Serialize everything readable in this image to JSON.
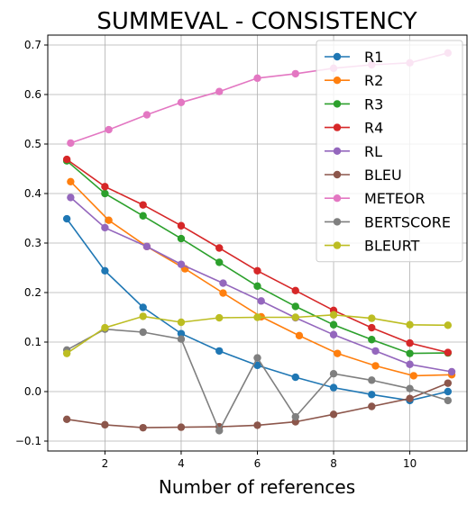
{
  "chart_data": {
    "type": "line",
    "title": "SUMMEVAL - CONSISTENCY",
    "xlabel": "Number of references",
    "ylabel": "",
    "xlim": [
      0.5,
      11.5
    ],
    "ylim": [
      -0.12,
      0.72
    ],
    "x": [
      1,
      2,
      3,
      4,
      5,
      6,
      7,
      8,
      9,
      10,
      11
    ],
    "x_offsets_note": "",
    "xticks": [
      2,
      4,
      6,
      8,
      10
    ],
    "yticks": [
      -0.1,
      0.0,
      0.1,
      0.2,
      0.3,
      0.4,
      0.5,
      0.6,
      0.7
    ],
    "ytick_labels": [
      "−0.1",
      "0.0",
      "0.1",
      "0.2",
      "0.3",
      "0.4",
      "0.5",
      "0.6",
      "0.7"
    ],
    "grid": true,
    "legend_position": "top-right",
    "series": [
      {
        "name": "R1",
        "color": "#1f77b4",
        "x": [
          1,
          2,
          3,
          4,
          5,
          6,
          7,
          8,
          9,
          10,
          11
        ],
        "values": [
          0.349,
          0.244,
          0.17,
          0.117,
          0.082,
          0.053,
          0.029,
          0.008,
          -0.006,
          -0.018,
          0.0
        ]
      },
      {
        "name": "R2",
        "color": "#ff7f0e",
        "x": [
          1.1,
          2.1,
          3.1,
          4.1,
          5.1,
          6.1,
          7.1,
          8.1,
          9.1,
          10.1,
          11.1
        ],
        "values": [
          0.424,
          0.346,
          0.293,
          0.248,
          0.199,
          0.151,
          0.113,
          0.077,
          0.052,
          0.032,
          0.034
        ]
      },
      {
        "name": "R3",
        "color": "#2ca02c",
        "x": [
          1,
          2,
          3,
          4,
          5,
          6,
          7,
          8,
          9,
          10,
          11
        ],
        "values": [
          0.466,
          0.4,
          0.355,
          0.309,
          0.261,
          0.213,
          0.172,
          0.135,
          0.105,
          0.077,
          0.078
        ]
      },
      {
        "name": "R4",
        "color": "#d62728",
        "x": [
          1,
          2,
          3,
          4,
          5,
          6,
          7,
          8,
          9,
          10,
          11
        ],
        "values": [
          0.469,
          0.414,
          0.377,
          0.335,
          0.29,
          0.244,
          0.204,
          0.164,
          0.129,
          0.098,
          0.079
        ]
      },
      {
        "name": "RL",
        "color": "#9467bd",
        "x": [
          1.1,
          2,
          3.1,
          4,
          5.1,
          6.1,
          7,
          8,
          9.1,
          10,
          11.1
        ],
        "values": [
          0.392,
          0.331,
          0.293,
          0.257,
          0.219,
          0.183,
          0.149,
          0.115,
          0.082,
          0.055,
          0.04
        ]
      },
      {
        "name": "BLEU",
        "color": "#8c564b",
        "x": [
          1,
          2,
          3,
          4,
          5,
          6,
          7,
          8,
          9,
          10,
          11
        ],
        "values": [
          -0.056,
          -0.067,
          -0.073,
          -0.072,
          -0.071,
          -0.068,
          -0.061,
          -0.046,
          -0.03,
          -0.014,
          0.017
        ]
      },
      {
        "name": "METEOR",
        "color": "#e377c2",
        "x": [
          1.1,
          2.1,
          3.1,
          4,
          5,
          6,
          7,
          8,
          9,
          10,
          11
        ],
        "values": [
          0.502,
          0.529,
          0.559,
          0.584,
          0.606,
          0.633,
          0.642,
          0.653,
          0.66,
          0.664,
          0.684
        ]
      },
      {
        "name": "BERTSCORE",
        "color": "#7f7f7f",
        "x": [
          1,
          2,
          3,
          4,
          5,
          6,
          7,
          8,
          9,
          10,
          11
        ],
        "values": [
          0.084,
          0.126,
          0.12,
          0.106,
          -0.079,
          0.068,
          -0.051,
          0.036,
          0.023,
          0.006,
          -0.018
        ]
      },
      {
        "name": "BLEURT",
        "color": "#bcbd22",
        "x": [
          1,
          2,
          3,
          4,
          5,
          6,
          7,
          8,
          9,
          10,
          11
        ],
        "values": [
          0.077,
          0.129,
          0.152,
          0.14,
          0.149,
          0.15,
          0.15,
          0.155,
          0.148,
          0.135,
          0.134
        ]
      }
    ]
  }
}
